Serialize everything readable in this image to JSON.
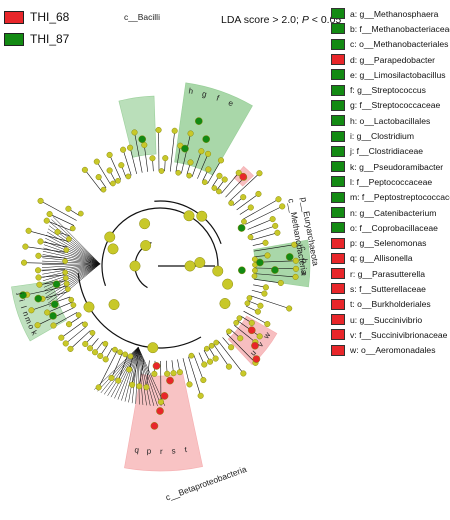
{
  "groups": [
    {
      "name": "THI_68",
      "color": "#e8262a"
    },
    {
      "name": "THI_87",
      "color": "#138a13"
    }
  ],
  "lda_text": "LDA score > 2.0; ",
  "p_text": "P",
  "p_suffix": " < 0.05",
  "colors": {
    "red": "#e8262a",
    "green": "#138a13",
    "node": "#c8c829",
    "node_edge": "#8a8a10",
    "red_sector": "#f4a3a5",
    "green_sector": "#8cc98c",
    "line": "#111111"
  },
  "taxa": [
    {
      "letter": "a",
      "text": "a: g__Methanosphaera",
      "group": "THI_87"
    },
    {
      "letter": "b",
      "text": "b: f__Methanobacteriaceae",
      "group": "THI_87"
    },
    {
      "letter": "c",
      "text": "c: o__Methanobacteriales",
      "group": "THI_87"
    },
    {
      "letter": "d",
      "text": "d: g__Parapedobacter",
      "group": "THI_68"
    },
    {
      "letter": "e",
      "text": "e: g__Limosilactobacillus",
      "group": "THI_87"
    },
    {
      "letter": "f",
      "text": "f: g__Streptococcus",
      "group": "THI_87"
    },
    {
      "letter": "g",
      "text": "g: f__Streptococcaceae",
      "group": "THI_87"
    },
    {
      "letter": "h",
      "text": "h: o__Lactobacillales",
      "group": "THI_87"
    },
    {
      "letter": "i",
      "text": "i: g__Clostridium",
      "group": "THI_87"
    },
    {
      "letter": "j",
      "text": "j: f__Clostridiaceae",
      "group": "THI_87"
    },
    {
      "letter": "k",
      "text": "k: g__Pseudoramibacter",
      "group": "THI_87"
    },
    {
      "letter": "l",
      "text": "l: f__Peptococcaceae",
      "group": "THI_87"
    },
    {
      "letter": "m",
      "text": "m: f__Peptostreptococcaceae",
      "group": "THI_87"
    },
    {
      "letter": "n",
      "text": "n: g__Catenibacterium",
      "group": "THI_87"
    },
    {
      "letter": "o",
      "text": "o: f__Coprobacillaceae",
      "group": "THI_87"
    },
    {
      "letter": "p",
      "text": "p: g__Selenomonas",
      "group": "THI_68"
    },
    {
      "letter": "q",
      "text": "q: g__Allisonella",
      "group": "THI_68"
    },
    {
      "letter": "r",
      "text": "r: g__Parasutterella",
      "group": "THI_68"
    },
    {
      "letter": "s",
      "text": "s: f__Sutterellaceae",
      "group": "THI_68"
    },
    {
      "letter": "t",
      "text": "t: o__Burkholderiales",
      "group": "THI_68"
    },
    {
      "letter": "u",
      "text": "u: g__Succinivibrio",
      "group": "THI_68"
    },
    {
      "letter": "v",
      "text": "v: f__Succinivibrionaceae",
      "group": "THI_68"
    },
    {
      "letter": "w",
      "text": "w: o__Aeromonadales",
      "group": "THI_68"
    }
  ],
  "clade_labels": {
    "bacilli": "c__Bacilli",
    "euryarchaeota": "p__Euryarchaeota",
    "methanobacteria": "c__Methanobacteria",
    "betaproteobacteria": "c__Betaproteobacteria"
  },
  "sector_letters": {
    "bacilli": [
      "h",
      "g",
      "f",
      "e"
    ],
    "archaea": [
      "c",
      "b",
      "a"
    ],
    "left_green": [
      "k",
      "o",
      "m",
      "n",
      "l",
      "i",
      "j"
    ],
    "red_lower": [
      "t",
      "s",
      "r",
      "p",
      "q"
    ],
    "red_right": [
      "w",
      "v",
      "u"
    ],
    "single": [
      "d",
      "n",
      "k"
    ]
  }
}
